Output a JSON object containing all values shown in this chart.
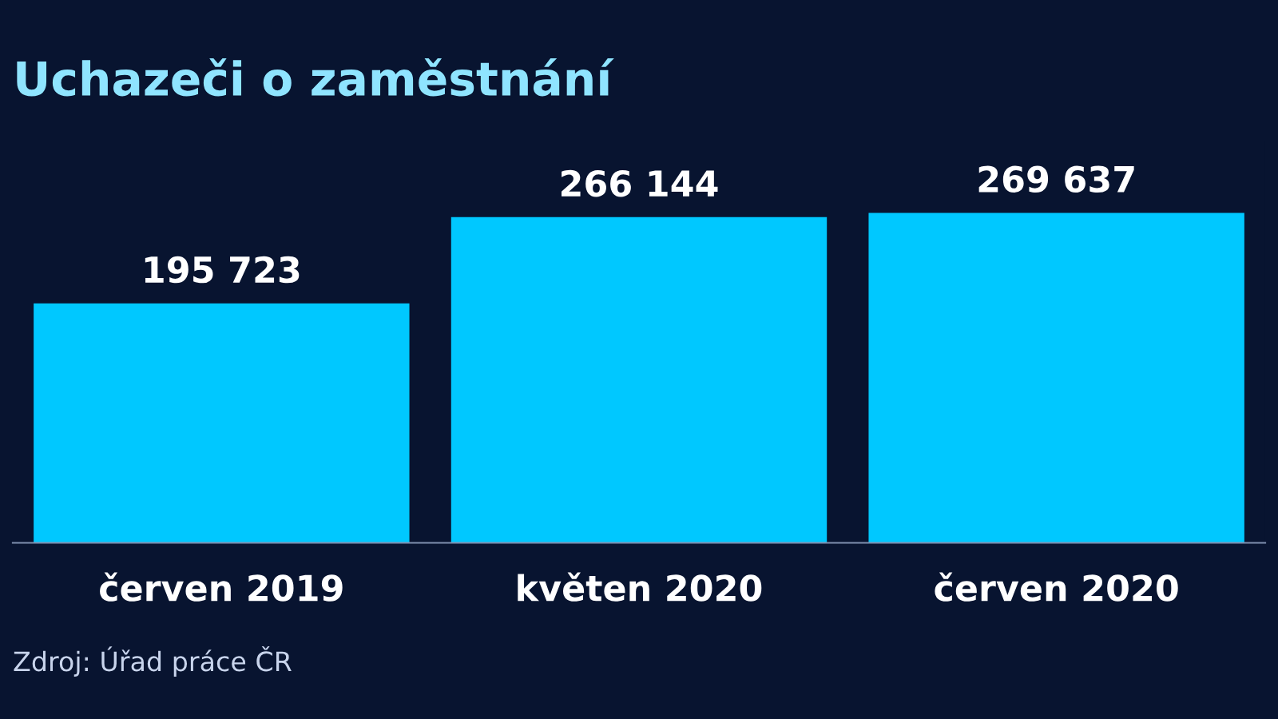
{
  "chart_data": {
    "type": "bar",
    "title": "Uchazeči o zaměstnání",
    "categories": [
      "červen 2019",
      "květen 2020",
      "červen 2020"
    ],
    "values": [
      195723,
      266144,
      269637
    ],
    "value_labels": [
      "195 723",
      "266 144",
      "269 637"
    ],
    "color": "#00c8ff",
    "annotations": [
      "Zdroj: Úřad práce ČR"
    ]
  }
}
